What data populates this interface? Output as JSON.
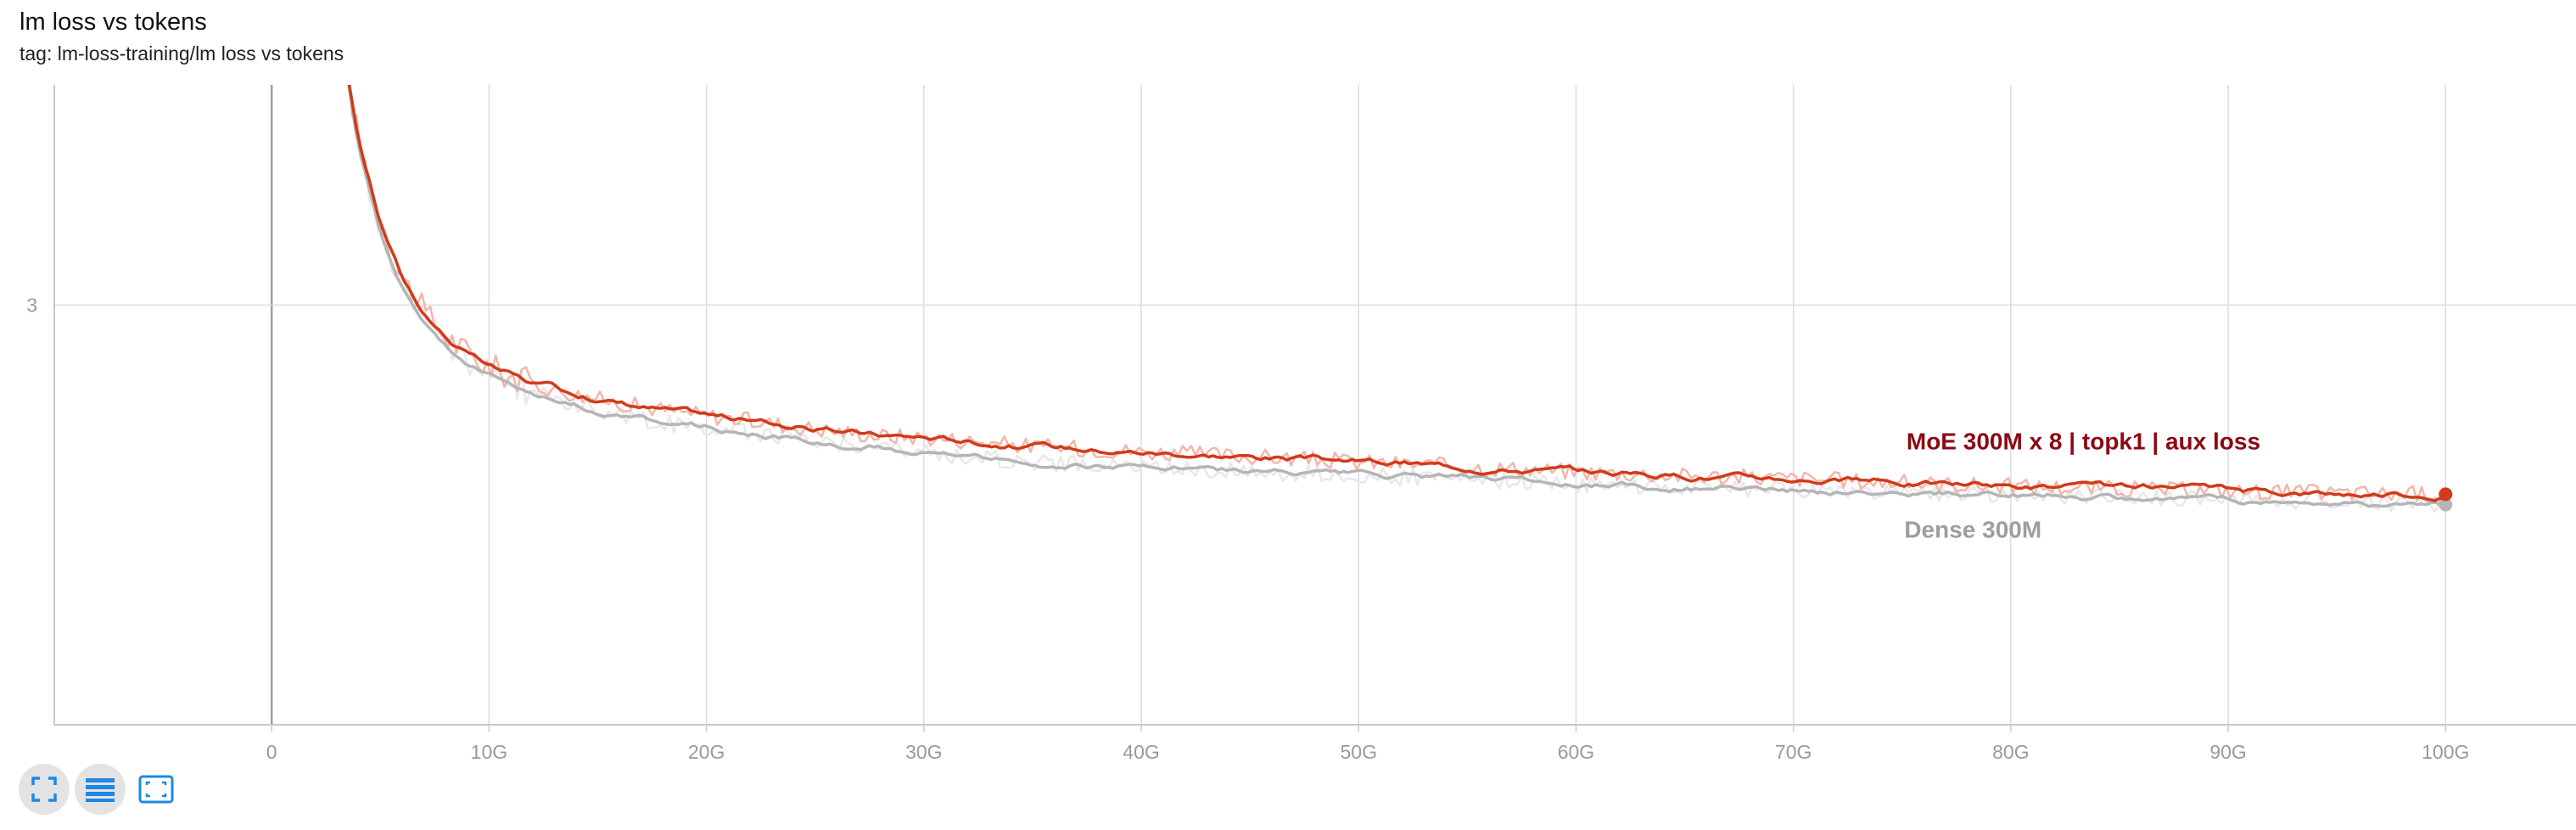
{
  "header": {
    "title": "lm loss vs tokens",
    "tag": "tag: lm-loss-training/lm loss vs tokens"
  },
  "toolbar": {
    "buttons": [
      {
        "name": "fullscreen-icon"
      },
      {
        "name": "toggle-log-scale-icon"
      },
      {
        "name": "fit-domain-icon"
      }
    ]
  },
  "chart_data": {
    "type": "line",
    "title": "lm loss vs tokens",
    "xlabel": "",
    "ylabel": "",
    "x_unit": "tokens",
    "xlim": [
      -10,
      106
    ],
    "ylim": [
      2.39,
      3.32
    ],
    "x_ticks": [
      0,
      10,
      20,
      30,
      40,
      50,
      60,
      70,
      80,
      90,
      100
    ],
    "x_tick_labels": [
      "0",
      "10G",
      "20G",
      "30G",
      "40G",
      "50G",
      "60G",
      "70G",
      "80G",
      "90G",
      "100G"
    ],
    "y_ticks": [
      3
    ],
    "y_tick_labels": [
      "3"
    ],
    "grid": true,
    "legend": "inline labels near line ends",
    "series": [
      {
        "name": "MoE 300M x 8 | topk1 | aux loss",
        "color": "#d03b1b",
        "raw_color": "#f4b6a8",
        "x": [
          3.5,
          4,
          5,
          6,
          7,
          8,
          9,
          10,
          12,
          14,
          16,
          18,
          20,
          22,
          25,
          28,
          30,
          35,
          40,
          45,
          50,
          55,
          60,
          65,
          70,
          75,
          80,
          85,
          90,
          95,
          100
        ],
        "values": [
          3.33,
          3.24,
          3.12,
          3.04,
          2.99,
          2.955,
          2.93,
          2.91,
          2.885,
          2.87,
          2.858,
          2.848,
          2.84,
          2.832,
          2.82,
          2.81,
          2.808,
          2.795,
          2.787,
          2.78,
          2.772,
          2.765,
          2.758,
          2.752,
          2.748,
          2.742,
          2.737,
          2.733,
          2.73,
          2.727,
          2.725
        ]
      },
      {
        "name": "Dense 300M",
        "color": "#b5b5b5",
        "raw_color": "#e8e8e8",
        "x": [
          3.5,
          4,
          5,
          6,
          7,
          8,
          9,
          10,
          12,
          14,
          16,
          18,
          20,
          22,
          25,
          28,
          30,
          35,
          40,
          45,
          50,
          55,
          60,
          65,
          70,
          75,
          80,
          85,
          90,
          95,
          100
        ],
        "values": [
          3.33,
          3.23,
          3.11,
          3.03,
          2.98,
          2.945,
          2.92,
          2.9,
          2.873,
          2.855,
          2.84,
          2.828,
          2.822,
          2.815,
          2.803,
          2.793,
          2.785,
          2.772,
          2.765,
          2.758,
          2.752,
          2.746,
          2.74,
          2.735,
          2.731,
          2.727,
          2.724,
          2.721,
          2.718,
          2.714,
          2.71
        ]
      }
    ]
  }
}
